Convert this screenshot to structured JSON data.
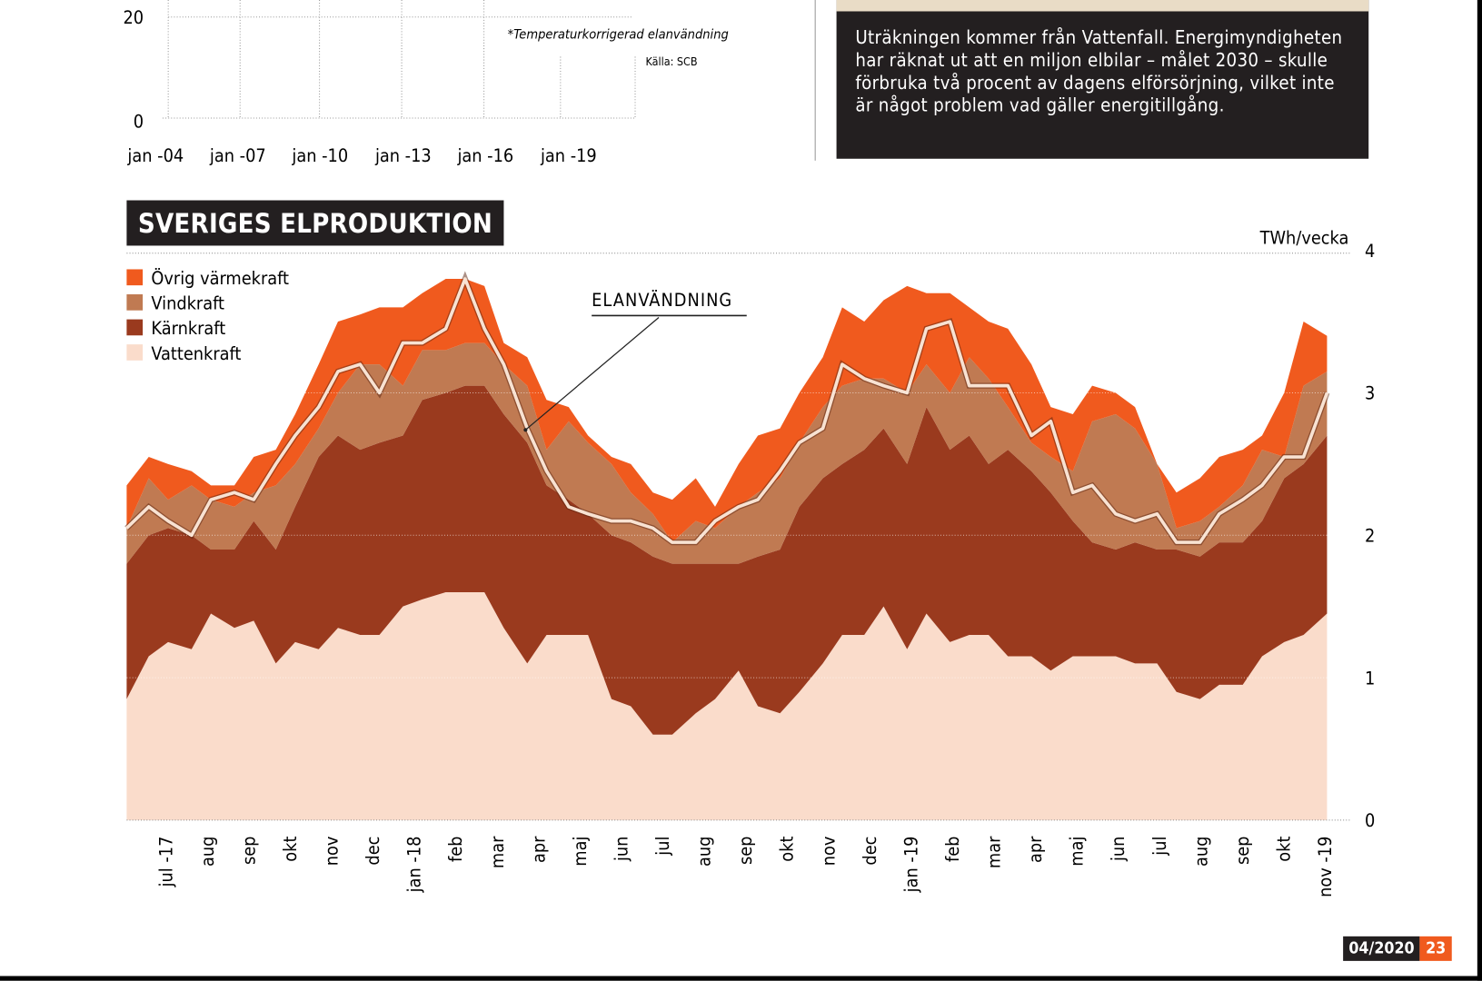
{
  "top_chart": {
    "y_ticks": [
      "20",
      "0"
    ],
    "x_ticks": [
      "jan -04",
      "jan -07",
      "jan -10",
      "jan -13",
      "jan -16",
      "jan -19"
    ],
    "note": "*Temperaturkorrigerad elanvändning",
    "source": "Källa: SCB"
  },
  "textbox": {
    "text": "Uträkningen kommer från Vattenfall. Energimyndigheten har räknat ut att en miljon elbilar – målet 2030 – skulle förbruka två procent av dagens elförsörjning, vilket inte är något problem vad gäller energitillgång."
  },
  "footer": {
    "issue": "04/2020",
    "page": "23"
  },
  "chart_data": {
    "type": "area",
    "stacked": true,
    "title": "SVERIGES ELPRODUKTION",
    "ylabel": "TWh/vecka",
    "ylim": [
      0,
      4
    ],
    "y_ticks": [
      "0",
      "1",
      "2",
      "3",
      "4"
    ],
    "grid": true,
    "legend_placement": "top-left",
    "x_tick_labels": [
      "jul -17",
      "aug",
      "sep",
      "okt",
      "nov",
      "dec",
      "jan -18",
      "feb",
      "mar",
      "apr",
      "maj",
      "jun",
      "jul",
      "aug",
      "sep",
      "okt",
      "nov",
      "dec",
      "jan -19",
      "feb",
      "mar",
      "apr",
      "maj",
      "jun",
      "jul",
      "aug",
      "sep",
      "okt",
      "nov -19"
    ],
    "x": [
      "2017-06-15",
      "2017-07-01",
      "2017-07-15",
      "2017-08-01",
      "2017-08-15",
      "2017-09-01",
      "2017-09-15",
      "2017-10-01",
      "2017-10-15",
      "2017-11-01",
      "2017-11-15",
      "2017-12-01",
      "2017-12-15",
      "2018-01-01",
      "2018-01-15",
      "2018-02-01",
      "2018-02-15",
      "2018-03-01",
      "2018-03-15",
      "2018-04-01",
      "2018-04-15",
      "2018-05-01",
      "2018-05-15",
      "2018-06-01",
      "2018-06-15",
      "2018-07-01",
      "2018-07-15",
      "2018-08-01",
      "2018-08-15",
      "2018-09-01",
      "2018-09-15",
      "2018-10-01",
      "2018-10-15",
      "2018-11-01",
      "2018-11-15",
      "2018-12-01",
      "2018-12-15",
      "2019-01-01",
      "2019-01-15",
      "2019-02-01",
      "2019-02-15",
      "2019-03-01",
      "2019-03-15",
      "2019-04-01",
      "2019-04-15",
      "2019-05-01",
      "2019-05-15",
      "2019-06-01",
      "2019-06-15",
      "2019-07-01",
      "2019-07-15",
      "2019-08-01",
      "2019-08-15",
      "2019-09-01",
      "2019-09-15",
      "2019-10-01",
      "2019-10-15",
      "2019-11-01"
    ],
    "series": [
      {
        "name": "Vattenkraft",
        "color": "#fadccb",
        "values": [
          0.85,
          1.15,
          1.25,
          1.2,
          1.45,
          1.35,
          1.4,
          1.1,
          1.25,
          1.2,
          1.35,
          1.3,
          1.3,
          1.5,
          1.55,
          1.6,
          1.6,
          1.6,
          1.35,
          1.1,
          1.3,
          1.3,
          1.3,
          0.85,
          0.8,
          0.6,
          0.6,
          0.75,
          0.85,
          1.05,
          0.8,
          0.75,
          0.9,
          1.1,
          1.3,
          1.3,
          1.5,
          1.2,
          1.45,
          1.25,
          1.3,
          1.3,
          1.15,
          1.15,
          1.05,
          1.15,
          1.15,
          1.15,
          1.1,
          1.1,
          0.9,
          0.85,
          0.95,
          0.95,
          1.15,
          1.25,
          1.3,
          1.45
        ]
      },
      {
        "name": "Kärnkraft",
        "color": "#9a3a1e",
        "values": [
          0.95,
          0.85,
          0.8,
          0.8,
          0.45,
          0.55,
          0.7,
          0.8,
          0.95,
          1.35,
          1.35,
          1.3,
          1.35,
          1.2,
          1.4,
          1.4,
          1.45,
          1.45,
          1.5,
          1.55,
          1.05,
          0.95,
          0.85,
          1.15,
          1.15,
          1.25,
          1.2,
          1.05,
          0.95,
          0.75,
          1.05,
          1.15,
          1.3,
          1.3,
          1.2,
          1.3,
          1.25,
          1.3,
          1.45,
          1.35,
          1.4,
          1.2,
          1.45,
          1.3,
          1.25,
          0.95,
          0.8,
          0.75,
          0.85,
          0.8,
          1.0,
          1.0,
          1.0,
          1.0,
          0.95,
          1.15,
          1.2,
          1.25
        ]
      },
      {
        "name": "Vindkraft",
        "color": "#c07a52",
        "values": [
          0.25,
          0.4,
          0.2,
          0.35,
          0.35,
          0.3,
          0.2,
          0.45,
          0.3,
          0.2,
          0.3,
          0.6,
          0.55,
          0.35,
          0.35,
          0.3,
          0.3,
          0.3,
          0.35,
          0.4,
          0.25,
          0.55,
          0.5,
          0.5,
          0.35,
          0.3,
          0.15,
          0.3,
          0.25,
          0.4,
          0.45,
          0.5,
          0.45,
          0.5,
          0.55,
          0.5,
          0.35,
          0.5,
          0.3,
          0.4,
          0.55,
          0.6,
          0.3,
          0.2,
          0.25,
          0.35,
          0.85,
          0.95,
          0.8,
          0.6,
          0.15,
          0.25,
          0.25,
          0.4,
          0.5,
          0.15,
          0.55,
          0.45
        ]
      },
      {
        "name": "Övrig värmekraft",
        "color": "#f05a1e",
        "values": [
          0.3,
          0.15,
          0.25,
          0.1,
          0.1,
          0.15,
          0.25,
          0.25,
          0.35,
          0.45,
          0.5,
          0.35,
          0.4,
          0.55,
          0.4,
          0.5,
          0.45,
          0.4,
          0.15,
          0.2,
          0.35,
          0.1,
          0.05,
          0.05,
          0.2,
          0.15,
          0.3,
          0.3,
          0.15,
          0.3,
          0.4,
          0.35,
          0.35,
          0.35,
          0.55,
          0.4,
          0.55,
          0.75,
          0.5,
          0.7,
          0.35,
          0.4,
          0.55,
          0.55,
          0.35,
          0.4,
          0.25,
          0.15,
          0.15,
          0.0,
          0.25,
          0.3,
          0.35,
          0.25,
          0.1,
          0.45,
          0.45,
          0.25
        ]
      }
    ],
    "line": {
      "name": "ELANVÄNDNING",
      "color": "#f8e2d2",
      "values": [
        2.05,
        2.2,
        2.1,
        2.0,
        2.25,
        2.3,
        2.25,
        2.5,
        2.7,
        2.9,
        3.15,
        3.2,
        3.0,
        3.35,
        3.35,
        3.45,
        3.8,
        3.45,
        3.2,
        2.75,
        2.45,
        2.2,
        2.15,
        2.1,
        2.1,
        2.05,
        1.95,
        1.95,
        2.1,
        2.2,
        2.25,
        2.45,
        2.65,
        2.75,
        3.2,
        3.1,
        3.05,
        3.0,
        3.45,
        3.5,
        3.05,
        3.05,
        3.05,
        2.7,
        2.8,
        2.3,
        2.35,
        2.15,
        2.1,
        2.15,
        1.95,
        1.95,
        2.15,
        2.25,
        2.35,
        2.55,
        2.55,
        3.0
      ]
    },
    "legend": [
      "Övrig värmekraft",
      "Vindkraft",
      "Kärnkraft",
      "Vattenkraft"
    ]
  }
}
